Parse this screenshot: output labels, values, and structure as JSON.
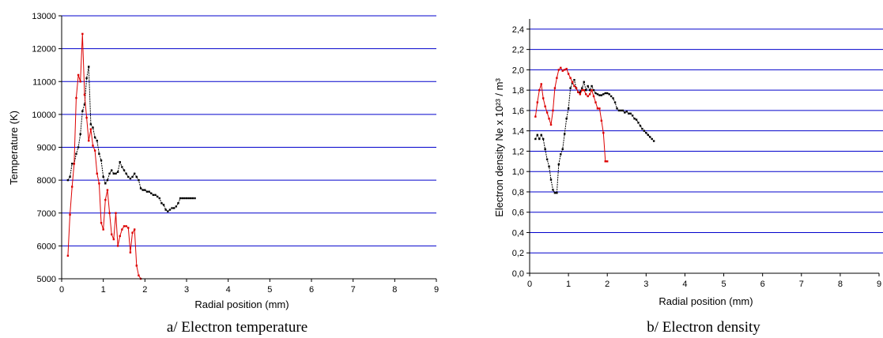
{
  "chart_data": [
    {
      "type": "line",
      "caption": "a/ Electron temperature",
      "xlabel": "Radial position (mm)",
      "ylabel": "Temperature (K)",
      "xlim": [
        0,
        9
      ],
      "ylim": [
        5000,
        13000
      ],
      "xticks": [
        "0",
        "1",
        "2",
        "3",
        "4",
        "5",
        "6",
        "7",
        "8",
        "9"
      ],
      "yticks": [
        "5000",
        "6000",
        "7000",
        "8000",
        "9000",
        "10000",
        "11000",
        "12000",
        "13000"
      ],
      "grid": "horizontal",
      "gridColor": "#0000cc",
      "series": [
        {
          "color": "#000000",
          "x": [
            0.15,
            0.2,
            0.25,
            0.3,
            0.35,
            0.4,
            0.45,
            0.5,
            0.55,
            0.6,
            0.65,
            0.7,
            0.75,
            0.8,
            0.85,
            0.9,
            0.95,
            1.0,
            1.05,
            1.1,
            1.15,
            1.2,
            1.25,
            1.3,
            1.35,
            1.4,
            1.45,
            1.5,
            1.55,
            1.6,
            1.65,
            1.7,
            1.75,
            1.8,
            1.85,
            1.9,
            1.95,
            2.0,
            2.05,
            2.1,
            2.15,
            2.2,
            2.25,
            2.3,
            2.35,
            2.4,
            2.45,
            2.5,
            2.55,
            2.6,
            2.65,
            2.7,
            2.75,
            2.8,
            2.85,
            2.9,
            2.95,
            3.0,
            3.05,
            3.1,
            3.15,
            3.2
          ],
          "y": [
            8000,
            8100,
            8500,
            8500,
            8800,
            9000,
            9400,
            10100,
            10300,
            11100,
            11450,
            9700,
            9600,
            9300,
            9200,
            8800,
            8600,
            8100,
            7900,
            8000,
            8200,
            8300,
            8200,
            8200,
            8250,
            8550,
            8400,
            8300,
            8200,
            8100,
            8050,
            8100,
            8200,
            8100,
            8000,
            7750,
            7700,
            7700,
            7650,
            7650,
            7600,
            7550,
            7550,
            7500,
            7450,
            7300,
            7250,
            7100,
            7050,
            7100,
            7150,
            7150,
            7200,
            7300,
            7450,
            7450,
            7450,
            7450,
            7450,
            7450,
            7450,
            7450
          ]
        },
        {
          "color": "#dd0000",
          "x": [
            0.15,
            0.2,
            0.25,
            0.3,
            0.35,
            0.4,
            0.45,
            0.5,
            0.55,
            0.6,
            0.65,
            0.7,
            0.75,
            0.8,
            0.85,
            0.9,
            0.95,
            1.0,
            1.05,
            1.1,
            1.15,
            1.2,
            1.25,
            1.3,
            1.35,
            1.4,
            1.45,
            1.5,
            1.55,
            1.6,
            1.65,
            1.7,
            1.75,
            1.8,
            1.85,
            1.9
          ],
          "y": [
            5700,
            6950,
            7800,
            8500,
            10500,
            11200,
            11000,
            12450,
            10600,
            9900,
            9200,
            9550,
            9050,
            8900,
            8200,
            7900,
            6700,
            6500,
            7400,
            7700,
            7000,
            6350,
            6200,
            7000,
            6000,
            6300,
            6500,
            6600,
            6600,
            6550,
            5800,
            6400,
            6500,
            5400,
            5100,
            5000
          ]
        }
      ]
    },
    {
      "type": "line",
      "caption": "b/ Electron density",
      "xlabel": "Radial position (mm)",
      "ylabel": "Electron density Ne x 10²³ / m³",
      "xlim": [
        0,
        9
      ],
      "ylim": [
        0,
        2.5
      ],
      "xticks": [
        "0",
        "1",
        "2",
        "3",
        "4",
        "5",
        "6",
        "7",
        "8",
        "9"
      ],
      "yticks": [
        "0,0",
        "0,2",
        "0,4",
        "0,6",
        "0,8",
        "1,0",
        "1,2",
        "1,4",
        "1,6",
        "1,8",
        "2,0",
        "2,2",
        "2,4"
      ],
      "grid": "horizontal",
      "gridColor": "#0000cc",
      "series": [
        {
          "color": "#000000",
          "x": [
            0.15,
            0.2,
            0.25,
            0.3,
            0.35,
            0.4,
            0.45,
            0.5,
            0.55,
            0.6,
            0.65,
            0.7,
            0.75,
            0.8,
            0.85,
            0.9,
            0.95,
            1.0,
            1.05,
            1.1,
            1.15,
            1.2,
            1.25,
            1.3,
            1.35,
            1.4,
            1.45,
            1.5,
            1.55,
            1.6,
            1.65,
            1.7,
            1.75,
            1.8,
            1.85,
            1.9,
            1.95,
            2.0,
            2.05,
            2.1,
            2.15,
            2.2,
            2.25,
            2.3,
            2.35,
            2.4,
            2.45,
            2.5,
            2.55,
            2.6,
            2.65,
            2.7,
            2.75,
            2.8,
            2.85,
            2.9,
            2.95,
            3.0,
            3.05,
            3.1,
            3.15,
            3.2
          ],
          "y": [
            1.32,
            1.36,
            1.32,
            1.36,
            1.32,
            1.22,
            1.12,
            1.05,
            0.92,
            0.82,
            0.79,
            0.79,
            1.07,
            1.17,
            1.22,
            1.37,
            1.52,
            1.62,
            1.82,
            1.87,
            1.9,
            1.82,
            1.78,
            1.78,
            1.82,
            1.88,
            1.8,
            1.84,
            1.8,
            1.84,
            1.8,
            1.77,
            1.76,
            1.75,
            1.75,
            1.76,
            1.77,
            1.77,
            1.76,
            1.74,
            1.72,
            1.68,
            1.62,
            1.6,
            1.6,
            1.6,
            1.58,
            1.59,
            1.57,
            1.57,
            1.55,
            1.52,
            1.51,
            1.48,
            1.45,
            1.42,
            1.4,
            1.38,
            1.36,
            1.34,
            1.32,
            1.3
          ]
        },
        {
          "color": "#dd0000",
          "x": [
            0.15,
            0.2,
            0.25,
            0.3,
            0.35,
            0.4,
            0.45,
            0.5,
            0.55,
            0.6,
            0.65,
            0.7,
            0.75,
            0.8,
            0.85,
            0.9,
            0.95,
            1.0,
            1.05,
            1.1,
            1.15,
            1.2,
            1.25,
            1.3,
            1.35,
            1.4,
            1.45,
            1.5,
            1.55,
            1.6,
            1.65,
            1.7,
            1.75,
            1.8,
            1.85,
            1.9,
            1.95,
            2.0
          ],
          "y": [
            1.54,
            1.68,
            1.8,
            1.86,
            1.72,
            1.64,
            1.58,
            1.52,
            1.46,
            1.6,
            1.82,
            1.92,
            2.0,
            2.02,
            1.99,
            2.0,
            2.01,
            1.96,
            1.92,
            1.88,
            1.84,
            1.82,
            1.78,
            1.76,
            1.8,
            1.8,
            1.76,
            1.74,
            1.76,
            1.8,
            1.74,
            1.68,
            1.62,
            1.62,
            1.5,
            1.38,
            1.1,
            1.1
          ]
        }
      ]
    }
  ]
}
